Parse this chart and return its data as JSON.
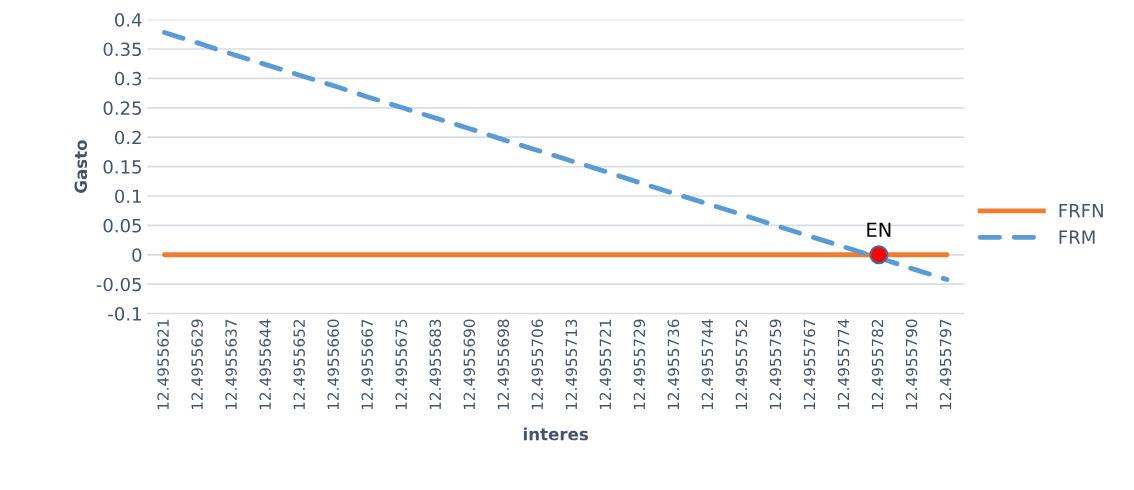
{
  "chart_data": {
    "type": "line",
    "xlabel": "interes",
    "ylabel": "Gasto",
    "categories": [
      "12.4955621",
      "12.4955629",
      "12.4955637",
      "12.4955644",
      "12.4955652",
      "12.4955660",
      "12.4955667",
      "12.4955675",
      "12.4955683",
      "12.4955690",
      "12.4955698",
      "12.4955706",
      "12.4955713",
      "12.4955721",
      "12.4955729",
      "12.4955736",
      "12.4955744",
      "12.4955752",
      "12.4955759",
      "12.4955767",
      "12.4955774",
      "12.4955782",
      "12.4955790",
      "12.4955797"
    ],
    "series": [
      {
        "name": "FRFN",
        "color": "#ed7d31",
        "line_style": "solid",
        "values": [
          0,
          0,
          0,
          0,
          0,
          0,
          0,
          0,
          0,
          0,
          0,
          0,
          0,
          0,
          0,
          0,
          0,
          0,
          0,
          0,
          0,
          0,
          0,
          0
        ]
      },
      {
        "name": "FRM",
        "color": "#5b9bd5",
        "line_style": "dashed",
        "values": [
          0.378,
          0.36,
          0.341,
          0.323,
          0.305,
          0.287,
          0.268,
          0.25,
          0.232,
          0.214,
          0.195,
          0.177,
          0.159,
          0.141,
          0.122,
          0.104,
          0.086,
          0.068,
          0.049,
          0.031,
          0.013,
          -0.005,
          -0.024,
          -0.042
        ]
      },
      {
        "type": "scatter",
        "color": "#ff0000",
        "marker": "circle",
        "x": [
          "12.4955782"
        ],
        "values": [
          0
        ]
      }
    ],
    "annotations": [
      {
        "text": "EN",
        "x": "12.4955782",
        "y": 0
      }
    ],
    "ylim": [
      -0.1,
      0.4
    ],
    "yticks": [
      -0.1,
      -0.05,
      0,
      0.05,
      0.1,
      0.15,
      0.2,
      0.25,
      0.3,
      0.35,
      0.4
    ],
    "grid": "y",
    "legend": "right"
  }
}
